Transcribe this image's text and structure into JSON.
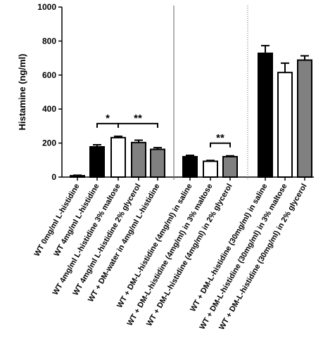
{
  "chart_data": {
    "type": "bar",
    "ylabel": "Histamine  (ng/ml)",
    "ylim": [
      0,
      1000
    ],
    "yticks": [
      0,
      200,
      400,
      600,
      800,
      1000
    ],
    "grid": false,
    "categories": [
      "WT 0mg/ml L-histidine",
      "WT 4mg/ml L-histidine",
      "WT 4mg/ml L-histidine 3% maltose",
      "WT 4mg/ml L-histidine 2% glycerol",
      "WT + DM-water in 4mg/ml L-histidine",
      "WT + DM-L-histidine (4mg/ml) in saline",
      "WT + DM-L-histidine (4mg/ml) in 3% maltose",
      "WT + DM-L-histidine (4mg/ml) in 2% glycerol",
      "WT + DM-L-histidine (30mg/ml) in saline",
      "WT + DM-L-histidine (30mg/ml) in 3% maltose",
      "WT + DM-L-histidine (30mg/ml) in 2% glycerol"
    ],
    "values": [
      8,
      178,
      232,
      203,
      163,
      120,
      93,
      120,
      728,
      615,
      688
    ],
    "errors": [
      3,
      12,
      8,
      14,
      10,
      8,
      5,
      5,
      45,
      55,
      25
    ],
    "fills": [
      "#000000",
      "#000000",
      "#ffffff",
      "#808080",
      "#808080",
      "#000000",
      "#ffffff",
      "#808080",
      "#000000",
      "#ffffff",
      "#808080"
    ],
    "significance": [
      {
        "from": 1,
        "to": 2,
        "label": "*"
      },
      {
        "from": 2,
        "to": 4,
        "label": "**"
      },
      {
        "from": 6,
        "to": 7,
        "label": "**"
      }
    ],
    "separators": [
      {
        "after": 4,
        "style": "solid"
      },
      {
        "after": 7,
        "style": "dotted"
      }
    ]
  }
}
